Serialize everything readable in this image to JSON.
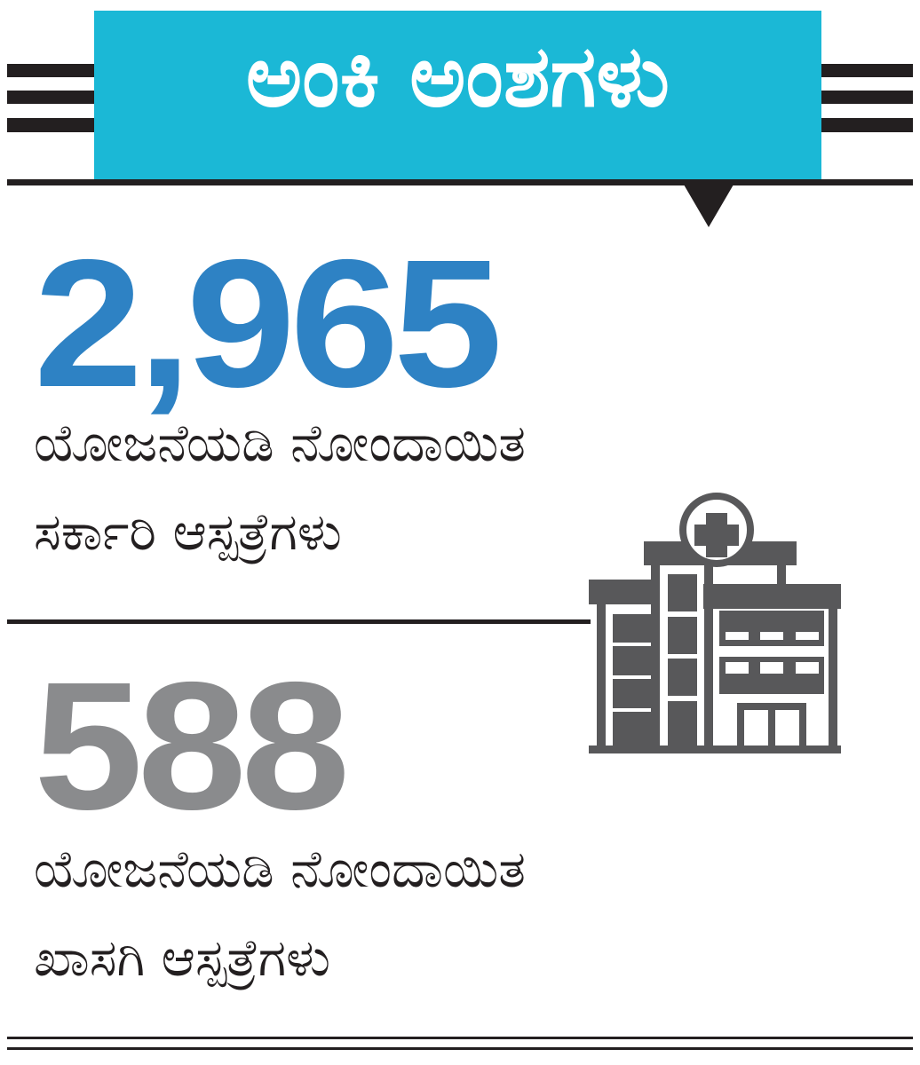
{
  "header": {
    "title": "ಅಂಕಿ ಅಂಶಗಳು"
  },
  "stats": [
    {
      "value": "2,965",
      "line1": "ಯೋಜನೆಯಡಿ ನೋಂದಾಯಿತ",
      "line2": "ಸರ್ಕಾರಿ ಆಸ್ಪತ್ರೆಗಳು",
      "color": "#2e82c4"
    },
    {
      "value": "588",
      "line1": "ಯೋಜನೆಯಡಿ ನೋಂದಾಯಿತ",
      "line2": "ಖಾಸಗಿ ಆಸ್ಪತ್ರೆಗಳು",
      "color": "#8a8b8d"
    }
  ],
  "colors": {
    "header": "#1bb8d6",
    "icon": "#58585a",
    "rule": "#231f20"
  },
  "icon": "hospital-icon"
}
